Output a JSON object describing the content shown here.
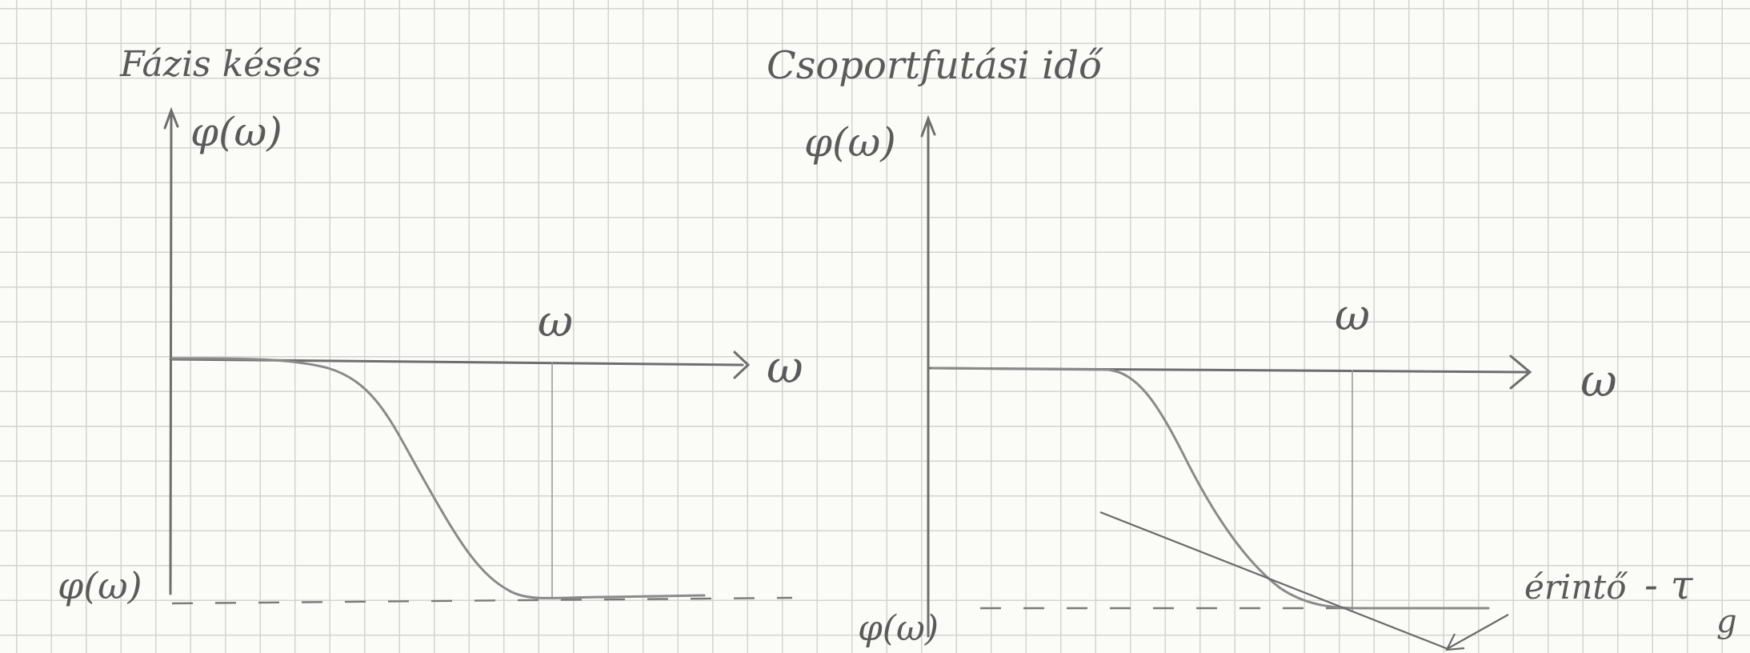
{
  "left_panel": {
    "title": "Fázis késés",
    "y_axis_label": "φ(ω)",
    "x_axis_label": "ω",
    "marker_label": "ω",
    "plateau_label": "φ(ω)"
  },
  "right_panel": {
    "title": "Csoportfutási idő",
    "y_axis_label": "φ(ω)",
    "x_axis_label": "ω",
    "marker_label": "ω",
    "plateau_label": "φ(ω)",
    "tangent_label": "érintő",
    "tau_label": "- τ",
    "tau_subscript": "g"
  },
  "colors": {
    "paper": "#fbfbf8",
    "grid": "#d3d3d0",
    "pencil": "#6e6e6e"
  }
}
